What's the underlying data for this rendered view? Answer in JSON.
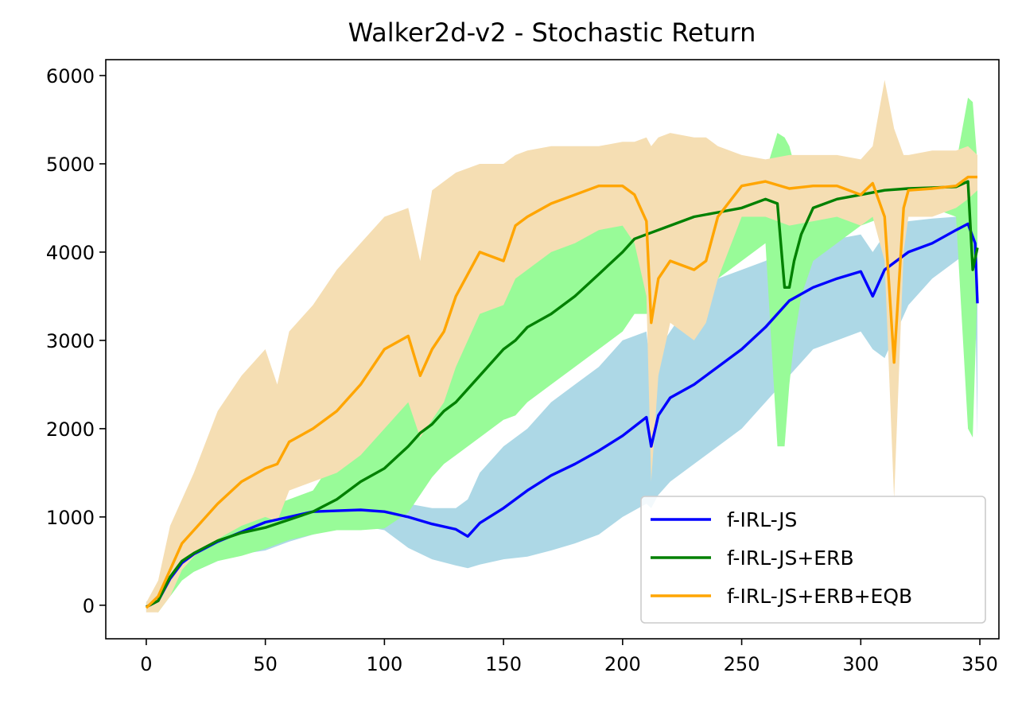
{
  "chart_data": {
    "type": "line",
    "title": "Walker2d-v2 - Stochastic Return",
    "xlabel": "",
    "ylabel": "",
    "xlim": [
      -17,
      358
    ],
    "ylim": [
      -380,
      6180
    ],
    "xticks": [
      0,
      50,
      100,
      150,
      200,
      250,
      300,
      350
    ],
    "yticks": [
      0,
      1000,
      2000,
      3000,
      4000,
      5000,
      6000
    ],
    "grid": false,
    "legend_position": "lower-right",
    "series": [
      {
        "name": "f-IRL-JS",
        "color": "#0000ff",
        "band_color": "#add8e6",
        "x": [
          0,
          5,
          10,
          15,
          20,
          30,
          40,
          50,
          60,
          70,
          80,
          90,
          100,
          110,
          120,
          130,
          135,
          140,
          150,
          160,
          170,
          180,
          190,
          200,
          210,
          212,
          215,
          220,
          230,
          240,
          250,
          260,
          270,
          280,
          290,
          300,
          305,
          310,
          315,
          320,
          330,
          340,
          345,
          348,
          349
        ],
        "y": [
          -20,
          50,
          300,
          480,
          580,
          720,
          830,
          940,
          1000,
          1060,
          1070,
          1080,
          1060,
          1000,
          920,
          860,
          780,
          930,
          1100,
          1300,
          1470,
          1600,
          1750,
          1920,
          2130,
          1800,
          2150,
          2350,
          2500,
          2700,
          2900,
          3150,
          3450,
          3600,
          3700,
          3780,
          3500,
          3800,
          3900,
          4000,
          4100,
          4250,
          4320,
          4100,
          3420
        ],
        "lo": [
          -80,
          -20,
          150,
          300,
          380,
          500,
          580,
          620,
          720,
          800,
          880,
          900,
          850,
          650,
          520,
          450,
          420,
          460,
          520,
          550,
          620,
          700,
          800,
          1000,
          1150,
          1100,
          1250,
          1400,
          1600,
          1800,
          2000,
          2300,
          2600,
          2900,
          3000,
          3100,
          2900,
          2800,
          3100,
          3400,
          3700,
          3900,
          4000,
          3600,
          1900
        ],
        "hi": [
          40,
          130,
          420,
          620,
          720,
          880,
          1000,
          1080,
          1150,
          1180,
          1200,
          1180,
          1170,
          1150,
          1100,
          1100,
          1200,
          1500,
          1800,
          2000,
          2300,
          2500,
          2700,
          3000,
          3100,
          2600,
          2900,
          3100,
          3500,
          3700,
          3800,
          3900,
          4050,
          4100,
          4150,
          4200,
          4000,
          4200,
          4300,
          4350,
          4380,
          4400,
          4450,
          4400,
          4350
        ]
      },
      {
        "name": "f-IRL-JS+ERB",
        "color": "#008000",
        "band_color": "#98fb98",
        "x": [
          0,
          5,
          10,
          15,
          20,
          30,
          40,
          50,
          60,
          70,
          80,
          90,
          100,
          110,
          115,
          120,
          125,
          130,
          140,
          150,
          155,
          160,
          170,
          180,
          190,
          200,
          205,
          210,
          220,
          230,
          240,
          250,
          260,
          265,
          268,
          270,
          272,
          275,
          280,
          290,
          300,
          310,
          320,
          330,
          340,
          345,
          347,
          349
        ],
        "y": [
          -20,
          50,
          320,
          500,
          590,
          730,
          820,
          880,
          970,
          1060,
          1200,
          1400,
          1550,
          1800,
          1950,
          2050,
          2200,
          2300,
          2600,
          2900,
          3000,
          3150,
          3300,
          3500,
          3750,
          4000,
          4150,
          4200,
          4300,
          4400,
          4450,
          4500,
          4600,
          4550,
          3600,
          3600,
          3900,
          4200,
          4500,
          4600,
          4650,
          4700,
          4720,
          4730,
          4740,
          4800,
          3800,
          4050
        ],
        "lo": [
          -60,
          -80,
          100,
          280,
          380,
          500,
          560,
          640,
          740,
          800,
          850,
          850,
          870,
          1050,
          1250,
          1450,
          1600,
          1700,
          1900,
          2100,
          2150,
          2300,
          2500,
          2700,
          2900,
          3100,
          3300,
          3300,
          3400,
          3500,
          3700,
          3900,
          4100,
          1800,
          1800,
          2500,
          3000,
          3500,
          3900,
          4100,
          4300,
          4400,
          4450,
          4500,
          4400,
          2000,
          1900,
          3600
        ],
        "hi": [
          20,
          150,
          450,
          650,
          750,
          900,
          1000,
          1100,
          1200,
          1300,
          1700,
          1900,
          2100,
          2400,
          2600,
          2900,
          3100,
          3300,
          3700,
          3900,
          4100,
          4400,
          4500,
          4550,
          4600,
          4650,
          4650,
          4700,
          4750,
          4750,
          4800,
          4850,
          4900,
          5350,
          5300,
          5200,
          5000,
          4900,
          4900,
          4900,
          4950,
          4950,
          4950,
          4950,
          5000,
          5750,
          5700,
          5000
        ]
      },
      {
        "name": "f-IRL-JS+ERB+EQB",
        "color": "#ffa500",
        "band_color": "#f5deb3",
        "x": [
          0,
          5,
          10,
          15,
          20,
          30,
          40,
          50,
          55,
          60,
          70,
          80,
          90,
          100,
          110,
          115,
          120,
          125,
          130,
          140,
          150,
          155,
          160,
          170,
          180,
          190,
          200,
          205,
          210,
          212,
          215,
          220,
          230,
          235,
          240,
          250,
          260,
          270,
          280,
          290,
          300,
          305,
          310,
          314,
          318,
          320,
          330,
          340,
          345,
          349
        ],
        "y": [
          -30,
          100,
          400,
          700,
          850,
          1150,
          1400,
          1550,
          1600,
          1850,
          2000,
          2200,
          2500,
          2900,
          3050,
          2600,
          2900,
          3100,
          3500,
          4000,
          3900,
          4300,
          4400,
          4550,
          4650,
          4750,
          4750,
          4650,
          4350,
          3200,
          3700,
          3900,
          3800,
          3900,
          4400,
          4750,
          4800,
          4720,
          4750,
          4750,
          4650,
          4780,
          4400,
          2750,
          4500,
          4700,
          4720,
          4750,
          4850,
          4850
        ],
        "lo": [
          -80,
          -80,
          100,
          400,
          550,
          750,
          900,
          1000,
          950,
          1300,
          1400,
          1500,
          1700,
          2000,
          2300,
          1900,
          2100,
          2300,
          2700,
          3300,
          3400,
          3700,
          3800,
          4000,
          4100,
          4250,
          4300,
          4100,
          3500,
          1400,
          2600,
          3200,
          3000,
          3200,
          3700,
          4400,
          4400,
          4300,
          4350,
          4400,
          4300,
          4400,
          3900,
          1200,
          4000,
          4400,
          4400,
          4500,
          4600,
          4700
        ],
        "hi": [
          30,
          280,
          900,
          1200,
          1500,
          2200,
          2600,
          2900,
          2500,
          3100,
          3400,
          3800,
          4100,
          4400,
          4500,
          3900,
          4700,
          4800,
          4900,
          5000,
          5000,
          5100,
          5150,
          5200,
          5200,
          5200,
          5250,
          5250,
          5300,
          5200,
          5300,
          5350,
          5300,
          5300,
          5200,
          5100,
          5050,
          5100,
          5100,
          5100,
          5050,
          5200,
          5950,
          5400,
          5100,
          5100,
          5150,
          5150,
          5200,
          5100
        ]
      }
    ]
  }
}
